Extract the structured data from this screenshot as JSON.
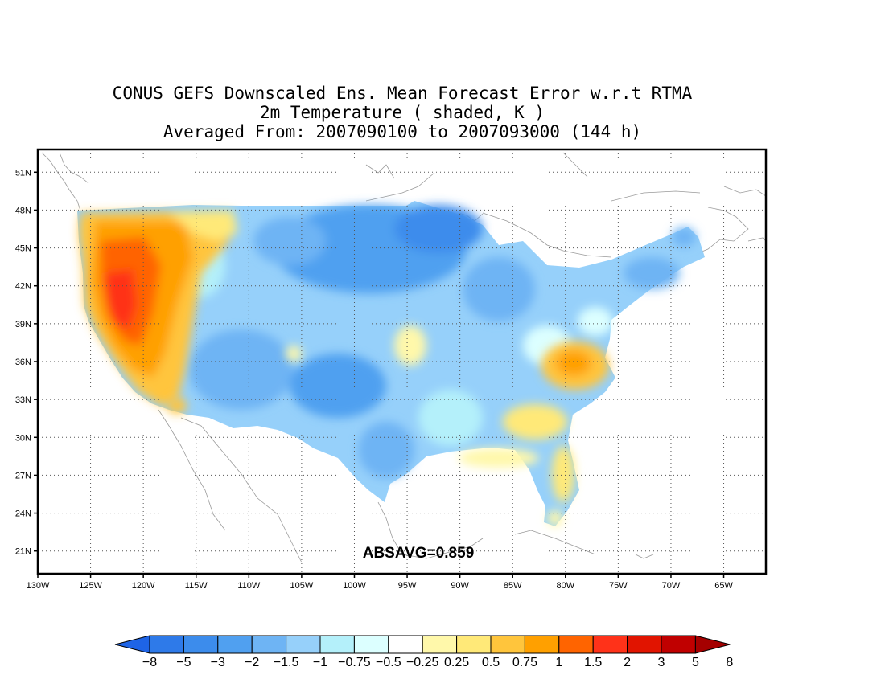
{
  "title": {
    "line1": "CONUS GEFS Downscaled Ens. Mean Forecast Error w.r.t RTMA",
    "line2": "2m Temperature ( shaded, K )",
    "line3": "Averaged From: 2007090100 to 2007093000 (144 h)"
  },
  "map": {
    "lon_ticks": [
      "130W",
      "125W",
      "120W",
      "115W",
      "110W",
      "105W",
      "100W",
      "95W",
      "90W",
      "85W",
      "80W",
      "75W",
      "70W",
      "65W"
    ],
    "lat_ticks": [
      "51N",
      "48N",
      "45N",
      "42N",
      "39N",
      "36N",
      "33N",
      "30N",
      "27N",
      "24N",
      "21N"
    ],
    "annotation": "ABSAVG=0.859",
    "gridlines": "dotted",
    "lon_range": [
      -130,
      -61
    ],
    "lat_range": [
      19.2,
      52.8
    ]
  },
  "colorbar": {
    "labels": [
      "-8",
      "-5",
      "-3",
      "-2",
      "-1.5",
      "-1",
      "-0.75",
      "-0.5",
      "-0.25",
      "0.25",
      "0.5",
      "0.75",
      "1",
      "1.5",
      "2",
      "3",
      "5",
      "8"
    ],
    "colors": [
      "#1e64e6",
      "#2e7ae9",
      "#3c8cec",
      "#50a0f0",
      "#6eb4f4",
      "#96d0fa",
      "#b4f0fa",
      "#dcffff",
      "#ffffff",
      "#fff8aa",
      "#ffe978",
      "#ffc53c",
      "#ffa000",
      "#ff6400",
      "#ff3219",
      "#e11400",
      "#c00000",
      "#a50000"
    ]
  }
}
